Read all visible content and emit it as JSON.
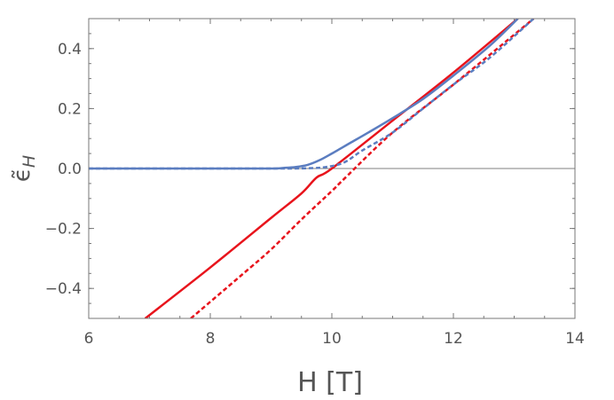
{
  "chart_data": {
    "type": "line",
    "xlabel": "H [T]",
    "ylabel_base": "ϵ̃",
    "ylabel_sub": "H",
    "xlim": [
      6,
      14
    ],
    "ylim": [
      -0.5,
      0.5
    ],
    "x_ticks": [
      6,
      8,
      10,
      12,
      14
    ],
    "y_ticks": [
      -0.4,
      -0.2,
      0.0,
      0.2,
      0.4
    ],
    "y_tick_labels": [
      "−0.4",
      "−0.2",
      "0.0",
      "0.2",
      "0.4"
    ],
    "x_minor_step": 0.5,
    "y_minor_step": 0.05,
    "grid": false,
    "reference_line_y": 0,
    "colors": {
      "red": "#e8141c",
      "blue": "#5b7dc0",
      "axis": "#777777",
      "zero_line": "#7f7f7f"
    },
    "series": [
      {
        "color": "#e8141c",
        "style": "solid",
        "x": [
          6.93,
          8.0,
          9.0,
          9.5,
          9.75,
          10.0,
          11.0,
          12.0,
          13.06
        ],
        "y": [
          -0.5,
          -0.33,
          -0.165,
          -0.083,
          -0.03,
          0.0,
          0.16,
          0.32,
          0.5
        ]
      },
      {
        "color": "#e8141c",
        "style": "dashed",
        "x": [
          7.68,
          8.5,
          9.0,
          9.5,
          10.0,
          10.2,
          11.0,
          12.0,
          13.32
        ],
        "y": [
          -0.5,
          -0.358,
          -0.27,
          -0.17,
          -0.075,
          -0.035,
          0.12,
          0.28,
          0.5
        ]
      },
      {
        "color": "#5b7dc0",
        "style": "solid",
        "x": [
          6.0,
          8.0,
          9.0,
          9.2,
          9.4,
          9.6,
          9.8,
          10.0,
          10.3,
          10.6,
          11.0,
          11.5,
          12.0,
          12.6,
          13.06
        ],
        "y": [
          0.0,
          0.0,
          0.0,
          0.002,
          0.005,
          0.012,
          0.028,
          0.05,
          0.085,
          0.12,
          0.168,
          0.232,
          0.31,
          0.41,
          0.5
        ]
      },
      {
        "color": "#5b7dc0",
        "style": "dashed",
        "x": [
          6.0,
          9.0,
          9.6,
          9.9,
          10.2,
          10.5,
          11.0,
          11.5,
          12.0,
          12.6,
          13.32
        ],
        "y": [
          0.0,
          0.0,
          0.001,
          0.005,
          0.02,
          0.06,
          0.12,
          0.2,
          0.28,
          0.37,
          0.5
        ]
      }
    ]
  }
}
